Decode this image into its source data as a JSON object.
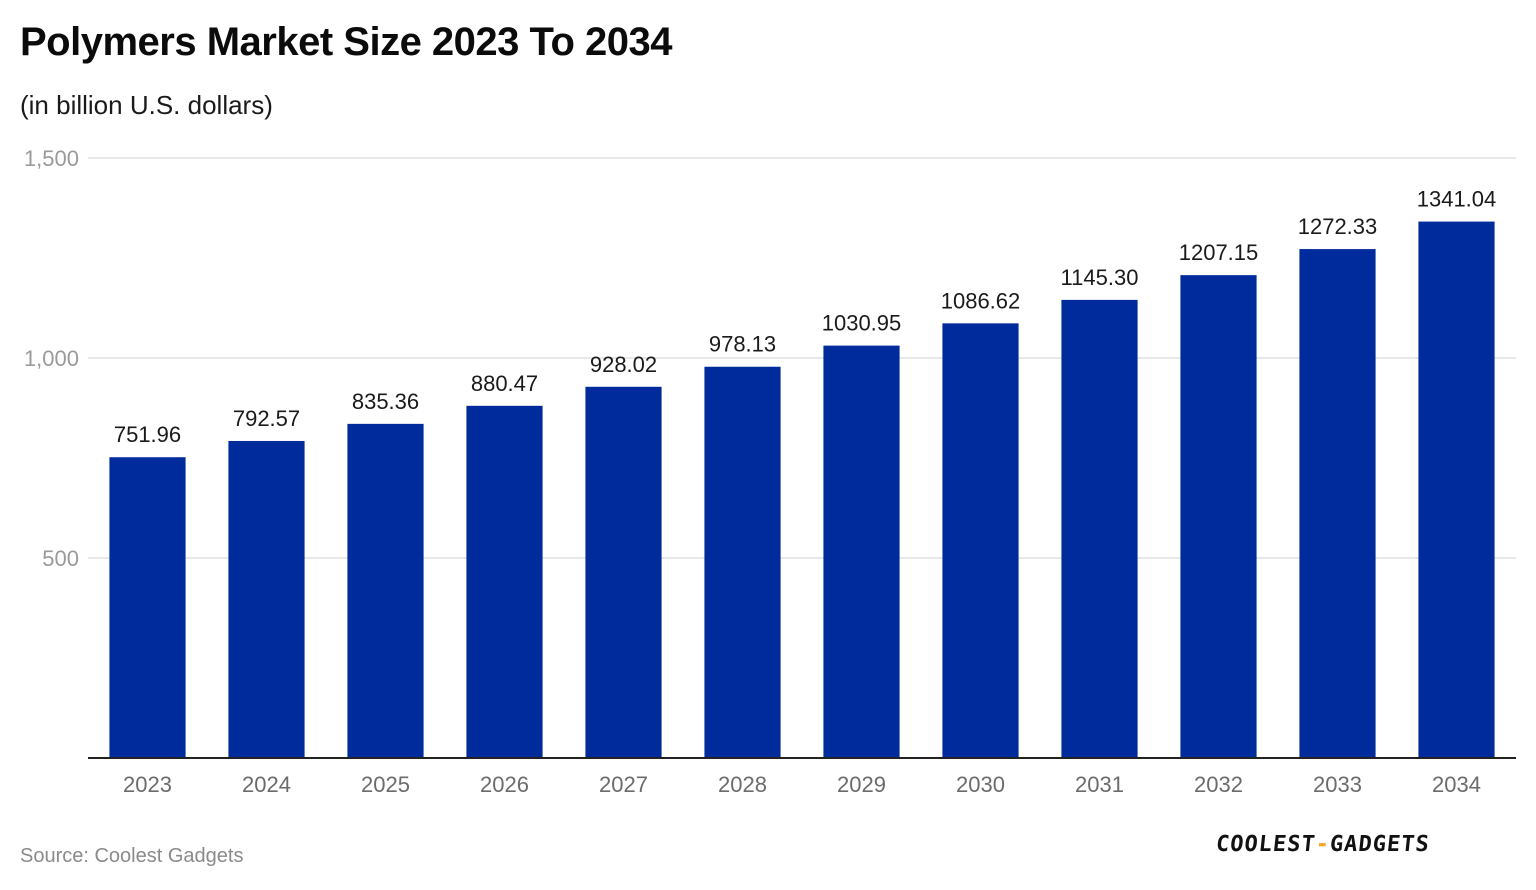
{
  "title": "Polymers Market Size 2023 To 2034",
  "subtitle": "(in billion U.S. dollars)",
  "source": "Source: Coolest Gadgets",
  "logo": {
    "left": "COOLEST",
    "sep": "-",
    "right": "GADGETS"
  },
  "colors": {
    "bar": "#002b9c",
    "grid": "#e0e0e0",
    "axis": "#222222",
    "tick_text": "#9a9a9a",
    "category_text": "#6b6b6b",
    "label_text": "#1a1a1a",
    "logo_accent": "#f5a623"
  },
  "chart_data": {
    "type": "bar",
    "categories": [
      "2023",
      "2024",
      "2025",
      "2026",
      "2027",
      "2028",
      "2029",
      "2030",
      "2031",
      "2032",
      "2033",
      "2034"
    ],
    "values": [
      751.96,
      792.57,
      835.36,
      880.47,
      928.02,
      978.13,
      1030.95,
      1086.62,
      1145.3,
      1207.15,
      1272.33,
      1341.04
    ],
    "value_labels": [
      "751.96",
      "792.57",
      "835.36",
      "880.47",
      "928.02",
      "978.13",
      "1030.95",
      "1086.62",
      "1145.30",
      "1207.15",
      "1272.33",
      "1341.04"
    ],
    "yticks": [
      500,
      1000,
      1500
    ],
    "ytick_labels": [
      "500",
      "1,000",
      "1,500"
    ],
    "ylim": [
      0,
      1500
    ],
    "title": "Polymers Market Size 2023 To 2034",
    "xlabel": "",
    "ylabel": "",
    "grid": true,
    "legend": "none"
  }
}
